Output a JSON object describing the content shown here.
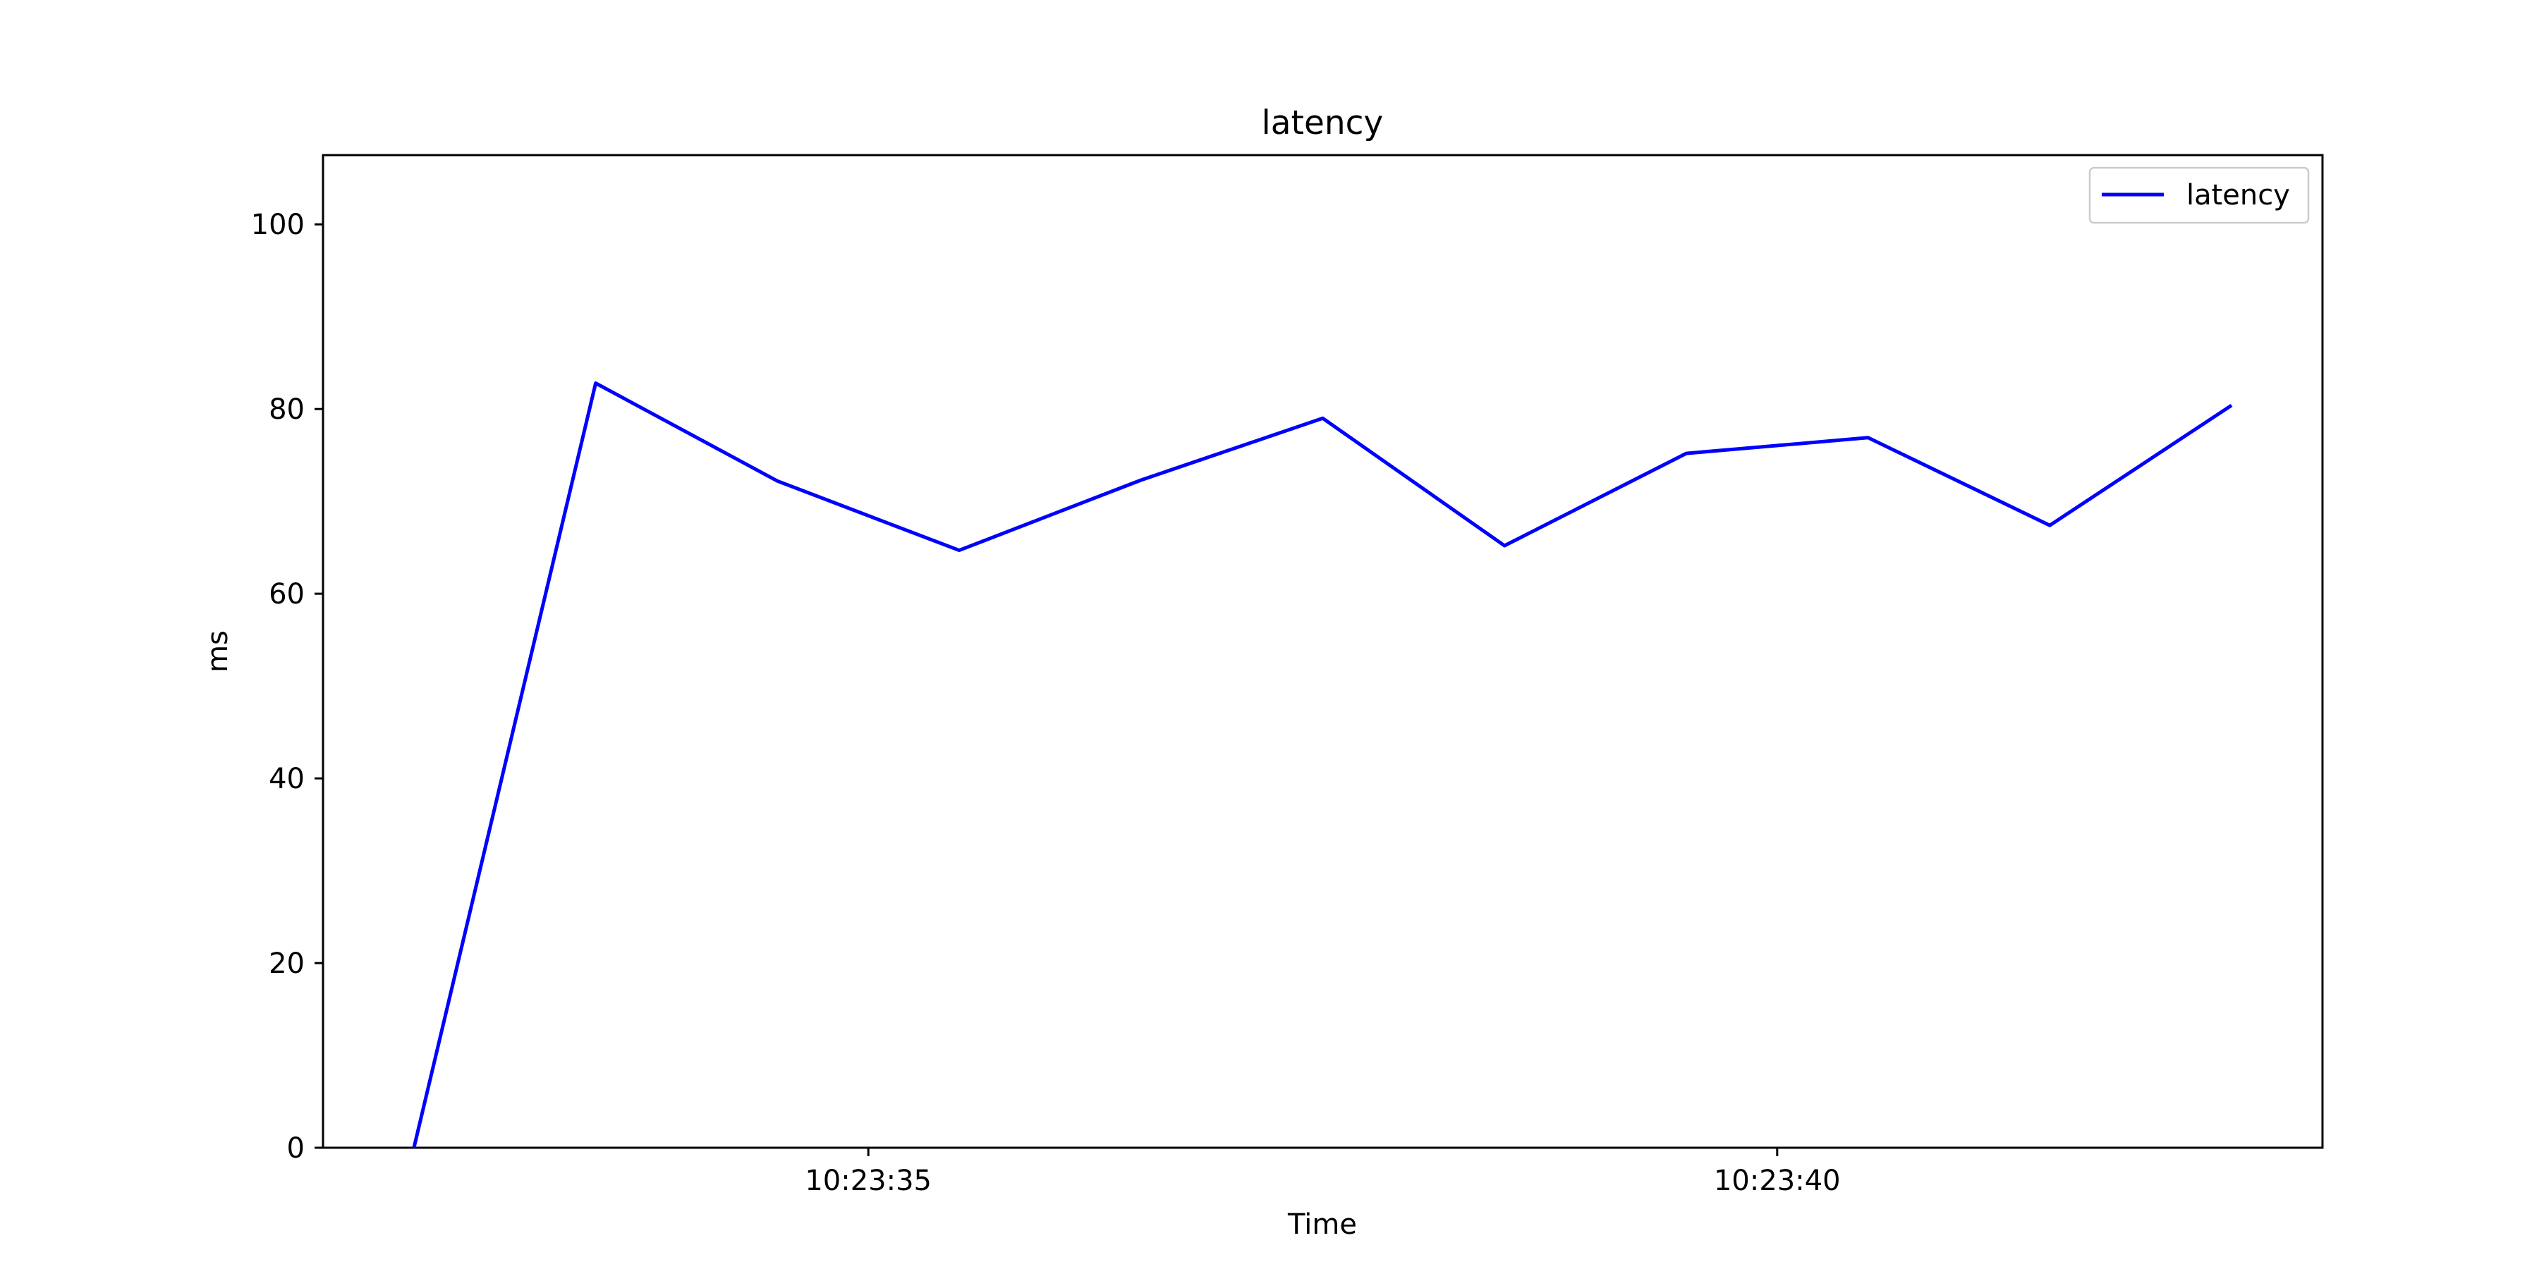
{
  "chart_data": {
    "type": "line",
    "title": "latency",
    "xlabel": "Time",
    "ylabel": "ms",
    "x": [
      "10:23:32.5",
      "10:23:33.5",
      "10:23:34.5",
      "10:23:35.5",
      "10:23:36.5",
      "10:23:37.5",
      "10:23:38.5",
      "10:23:39.5",
      "10:23:40.5",
      "10:23:41.5",
      "10:23:42.5"
    ],
    "series": [
      {
        "name": "latency",
        "color": "#0000ff",
        "values": [
          0,
          82.8,
          72.2,
          64.7,
          72.3,
          79.0,
          65.2,
          75.2,
          76.9,
          67.4,
          80.4
        ]
      }
    ],
    "xlim": [
      "10:23:32.0",
      "10:23:43.0"
    ],
    "ylim": [
      0,
      107.5
    ],
    "x_ticks": [
      "10:23:35",
      "10:23:40"
    ],
    "y_ticks": [
      0,
      20,
      40,
      60,
      80,
      100
    ],
    "legend_position": "top-right",
    "grid": false
  }
}
